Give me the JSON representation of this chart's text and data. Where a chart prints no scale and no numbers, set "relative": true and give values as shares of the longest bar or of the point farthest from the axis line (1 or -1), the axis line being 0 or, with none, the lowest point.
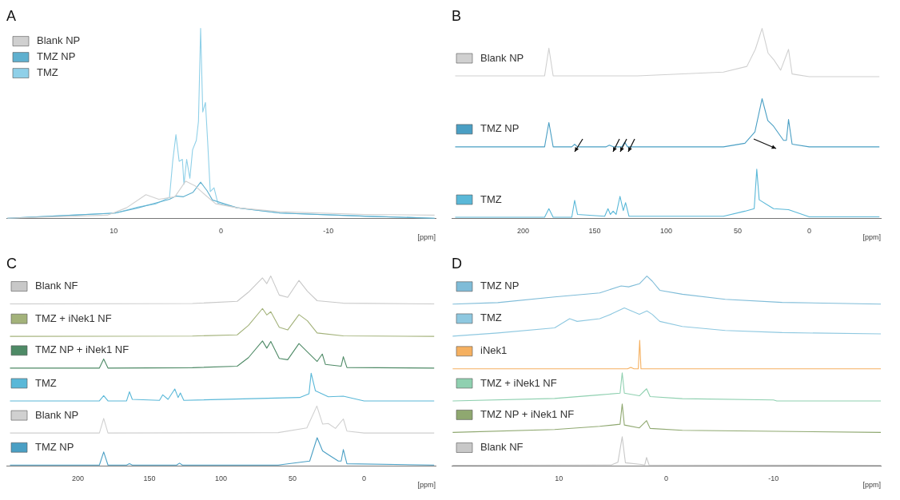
{
  "chart_data": [
    {
      "type": "line",
      "title": "A",
      "xlabel": "[ppm]",
      "relative": true,
      "xlim": [
        20,
        -20
      ],
      "xticks": [
        10,
        0,
        -10
      ],
      "legend": "top left",
      "marker": "none",
      "line_style": "solid",
      "grid": false,
      "series": [
        {
          "name": "Blank NP",
          "color": "#d0d0d0",
          "x": [
            19.9,
            10.6,
            8.8,
            7.0,
            5.8,
            4.3,
            3.3,
            2.4,
            1.5,
            0.5,
            -1.5,
            -5.5,
            -13.4,
            -19.9
          ],
          "values": [
            0,
            0.016,
            0.055,
            0.124,
            0.1,
            0.113,
            0.195,
            0.17,
            0.124,
            0.076,
            0.055,
            0.034,
            0.02,
            0.016
          ]
        },
        {
          "name": "TMZ NP",
          "color": "#5fb0cf",
          "x": [
            19.9,
            14.6,
            9.85,
            7.7,
            4.8,
            4.2,
            3.5,
            2.6,
            1.9,
            1.3,
            0.8,
            -1.5,
            -5.5,
            -13.4,
            -19.9
          ],
          "values": [
            0,
            0.014,
            0.027,
            0.055,
            0.1,
            0.117,
            0.113,
            0.137,
            0.19,
            0.145,
            0.096,
            0.055,
            0.027,
            0.011,
            0
          ]
        },
        {
          "name": "TMZ",
          "color": "#8fd0e8",
          "x": [
            19.9,
            14.6,
            9.85,
            7.7,
            6.1,
            4.8,
            4.5,
            4.2,
            3.9,
            3.6,
            3.45,
            3.2,
            2.9,
            2.65,
            2.3,
            2.1,
            1.9,
            1.7,
            1.45,
            1.25,
            1.0,
            0.65,
            0.3,
            -1.5,
            -5.5,
            -13.4,
            -19.9
          ],
          "values": [
            0,
            0.014,
            0.027,
            0.06,
            0.075,
            0.11,
            0.3,
            0.44,
            0.3,
            0.31,
            0.18,
            0.31,
            0.21,
            0.36,
            0.41,
            0.51,
            1,
            0.56,
            0.61,
            0.41,
            0.14,
            0.16,
            0.08,
            0.055,
            0.027,
            0.011,
            0
          ]
        }
      ]
    },
    {
      "type": "line",
      "title": "B",
      "xlabel": "[ppm]",
      "relative": true,
      "xlim": [
        250,
        -50
      ],
      "xticks": [
        200,
        150,
        100,
        50,
        0
      ],
      "legend": "left",
      "marker": "none",
      "line_style": "solid",
      "grid": false,
      "series": [
        {
          "name": "Blank NP",
          "color": "#d0d0d0",
          "x": [
            247.5,
            185,
            182,
            179,
            120,
            60,
            43.6,
            37.7,
            33,
            28.8,
            24.9,
            20,
            14.5,
            12,
            0,
            -49
          ],
          "values": [
            0.75,
            0.75,
            0.896,
            0.75,
            0.75,
            0.77,
            0.8,
            0.89,
            1,
            0.87,
            0.836,
            0.78,
            0.89,
            0.76,
            0.746,
            0.746
          ]
        },
        {
          "name": "TMZ NP",
          "color": "#4a9fc4",
          "x": [
            247.5,
            185,
            182,
            179,
            166,
            164,
            162,
            142,
            139.7,
            137,
            131,
            129,
            127,
            60,
            45,
            38,
            33,
            29,
            25,
            18,
            16,
            14.5,
            12,
            0,
            -49
          ],
          "values": [
            0.376,
            0.376,
            0.504,
            0.376,
            0.376,
            0.39,
            0.376,
            0.376,
            0.385,
            0.376,
            0.376,
            0.4,
            0.376,
            0.376,
            0.395,
            0.455,
            0.63,
            0.515,
            0.485,
            0.41,
            0.41,
            0.52,
            0.39,
            0.376,
            0.376
          ]
        },
        {
          "name": "TMZ",
          "color": "#5ab8d8",
          "x": [
            247.5,
            185,
            182,
            179,
            166,
            164,
            162,
            143,
            140.7,
            139,
            137.1,
            135,
            132.3,
            130,
            128.4,
            126,
            60,
            45,
            38.5,
            36.7,
            35,
            25,
            14.5,
            0,
            -49
          ],
          "values": [
            0.005,
            0.005,
            0.05,
            0.005,
            0.005,
            0.094,
            0.02,
            0.01,
            0.05,
            0.02,
            0.037,
            0.02,
            0.115,
            0.04,
            0.082,
            0.01,
            0.01,
            0.037,
            0.05,
            0.258,
            0.097,
            0.05,
            0.045,
            0.007,
            0.007
          ]
        }
      ]
    },
    {
      "type": "line",
      "title": "C",
      "xlabel": "[ppm]",
      "relative": true,
      "xlim": [
        250,
        -50
      ],
      "xticks": [
        200,
        150,
        100,
        50,
        0
      ],
      "legend": "left",
      "marker": "none",
      "line_style": "solid",
      "grid": false,
      "series": [
        {
          "name": "Blank NF",
          "color": "#c8c8c8",
          "x": [
            247.5,
            120,
            88.7,
            80.8,
            71,
            68,
            65.2,
            59.3,
            53.4,
            45.5,
            39.6,
            32.8,
            14.5,
            -49
          ],
          "values": [
            0.853,
            0.855,
            0.867,
            0.915,
            0.99,
            0.96,
            1,
            0.9,
            0.888,
            0.977,
            0.92,
            0.87,
            0.857,
            0.853
          ]
        },
        {
          "name": "TMZ + iNek1 NF",
          "color": "#a3b27a",
          "x": [
            247.5,
            120,
            88.7,
            80.8,
            71,
            68,
            65.2,
            59.3,
            53.4,
            45.5,
            39.6,
            32.8,
            14.5,
            -49
          ],
          "values": [
            0.682,
            0.684,
            0.69,
            0.74,
            0.829,
            0.795,
            0.812,
            0.73,
            0.716,
            0.797,
            0.764,
            0.7,
            0.685,
            0.682
          ]
        },
        {
          "name": "TMZ NP + iNek1 NF",
          "color": "#4e8a66",
          "x": [
            247.5,
            185,
            182,
            179,
            120,
            88.7,
            80.8,
            71,
            68,
            65.2,
            59.3,
            53.4,
            45.5,
            39.6,
            32.8,
            29.2,
            27,
            16,
            14.5,
            12,
            -49
          ],
          "values": [
            0.515,
            0.515,
            0.563,
            0.515,
            0.517,
            0.525,
            0.57,
            0.658,
            0.62,
            0.655,
            0.566,
            0.559,
            0.644,
            0.6,
            0.55,
            0.589,
            0.534,
            0.525,
            0.575,
            0.518,
            0.515
          ]
        },
        {
          "name": "TMZ",
          "color": "#5ab8d8",
          "x": [
            247.5,
            185,
            182,
            179,
            166,
            164,
            162,
            143,
            140.7,
            137,
            132.3,
            130,
            128.4,
            126,
            45,
            38.5,
            37,
            34,
            25,
            14.5,
            0,
            -49
          ],
          "values": [
            0.342,
            0.342,
            0.37,
            0.342,
            0.342,
            0.39,
            0.35,
            0.345,
            0.374,
            0.35,
            0.405,
            0.36,
            0.384,
            0.345,
            0.36,
            0.38,
            0.488,
            0.395,
            0.364,
            0.367,
            0.342,
            0.342
          ]
        },
        {
          "name": "Blank NP",
          "color": "#d0d0d0",
          "x": [
            247.5,
            185,
            182,
            179,
            60,
            40,
            33,
            29,
            25,
            20,
            14.5,
            12,
            0,
            -49
          ],
          "values": [
            0.173,
            0.173,
            0.25,
            0.173,
            0.175,
            0.2,
            0.315,
            0.22,
            0.223,
            0.197,
            0.247,
            0.183,
            0.173,
            0.173
          ]
        },
        {
          "name": "TMZ NP",
          "color": "#4a9fc4",
          "x": [
            247.5,
            185,
            182,
            179,
            166,
            164,
            162,
            131,
            129,
            127,
            60,
            38,
            32.8,
            29,
            25,
            18,
            16,
            14.5,
            12,
            -49
          ],
          "values": [
            0.004,
            0.004,
            0.073,
            0.004,
            0.004,
            0.011,
            0.004,
            0.004,
            0.014,
            0.004,
            0.004,
            0.025,
            0.148,
            0.079,
            0.059,
            0.025,
            0.025,
            0.086,
            0.011,
            0.004
          ]
        }
      ]
    },
    {
      "type": "line",
      "title": "D",
      "xlabel": "[ppm]",
      "relative": true,
      "xlim": [
        20,
        -20
      ],
      "xticks": [
        10,
        0,
        -10
      ],
      "legend": "left",
      "marker": "none",
      "line_style": "solid",
      "grid": false,
      "series": [
        {
          "name": "TMZ NP",
          "color": "#7fbcd8",
          "x": [
            19.9,
            15.7,
            10.4,
            6.2,
            4.2,
            3.5,
            2.5,
            1.8,
            1.3,
            0.6,
            -1.5,
            -5.5,
            -10.8,
            -20
          ],
          "values": [
            0.852,
            0.86,
            0.89,
            0.911,
            0.948,
            0.943,
            0.959,
            1,
            0.973,
            0.925,
            0.904,
            0.877,
            0.861,
            0.852
          ]
        },
        {
          "name": "TMZ",
          "color": "#8ec8e0",
          "x": [
            19.9,
            15.7,
            10.4,
            9.0,
            8.3,
            6.2,
            5.1,
            3.9,
            2.5,
            1.8,
            1.3,
            0.6,
            -1.5,
            -5.5,
            -10.8,
            -20
          ],
          "values": [
            0.683,
            0.7,
            0.727,
            0.775,
            0.761,
            0.775,
            0.8,
            0.832,
            0.798,
            0.816,
            0.798,
            0.761,
            0.734,
            0.713,
            0.702,
            0.695
          ]
        },
        {
          "name": "iNek1",
          "color": "#f5b060",
          "x": [
            19.9,
            3.6,
            3.3,
            3.0,
            2.6,
            2.47,
            2.35,
            -20
          ],
          "values": [
            0.511,
            0.511,
            0.519,
            0.511,
            0.511,
            0.661,
            0.511,
            0.511
          ]
        },
        {
          "name": "TMZ + iNek1 NF",
          "color": "#8fd0b0",
          "x": [
            19.9,
            10.4,
            6.2,
            4.3,
            4.1,
            3.9,
            2.5,
            1.83,
            1.5,
            -1.5,
            -10,
            -10.3,
            -20
          ],
          "values": [
            0.342,
            0.355,
            0.374,
            0.383,
            0.49,
            0.383,
            0.369,
            0.406,
            0.365,
            0.354,
            0.347,
            0.342,
            0.342
          ]
        },
        {
          "name": "TMZ NP + iNek1 NF",
          "color": "#8fa870",
          "x": [
            19.9,
            10.4,
            6.2,
            4.3,
            4.1,
            3.9,
            2.5,
            1.83,
            1.5,
            -1.5,
            -20
          ],
          "values": [
            0.176,
            0.191,
            0.208,
            0.219,
            0.326,
            0.215,
            0.2,
            0.238,
            0.197,
            0.187,
            0.176
          ]
        },
        {
          "name": "Blank NF",
          "color": "#c8c8c8",
          "x": [
            19.9,
            5.1,
            4.5,
            4.1,
            3.8,
            2.0,
            1.83,
            1.6,
            -20
          ],
          "values": [
            0.003,
            0.005,
            0.019,
            0.153,
            0.016,
            0.005,
            0.044,
            0.005,
            0.003
          ]
        }
      ]
    }
  ]
}
